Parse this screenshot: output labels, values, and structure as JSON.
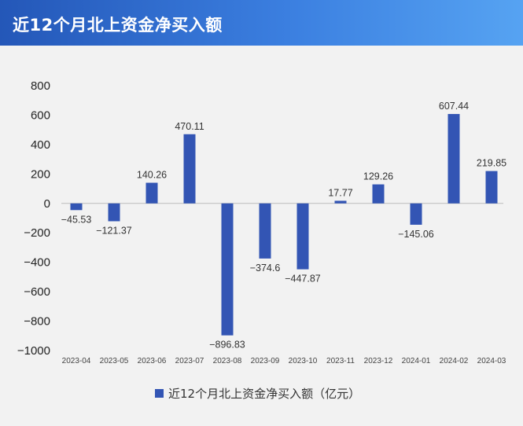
{
  "header": {
    "title": "近12个月北上资金净买入额"
  },
  "chart_data": {
    "type": "bar",
    "categories": [
      "2023-04",
      "2023-05",
      "2023-06",
      "2023-07",
      "2023-08",
      "2023-09",
      "2023-10",
      "2023-11",
      "2023-12",
      "2024-01",
      "2024-02",
      "2024-03"
    ],
    "series": [
      {
        "name": "近12个月北上资金净买入额（亿元）",
        "values": [
          -45.53,
          -121.37,
          140.26,
          470.11,
          -896.83,
          -374.6,
          -447.87,
          17.77,
          129.26,
          -145.06,
          607.44,
          219.85
        ],
        "labels": [
          "−45.53",
          "−121.37",
          "140.26",
          "470.11",
          "−896.83",
          "−374.6",
          "−447.87",
          "17.77",
          "129.26",
          "−145.06",
          "607.44",
          "219.85"
        ],
        "color": "#3355b4"
      }
    ],
    "yticks": [
      "800",
      "600",
      "400",
      "200",
      "0",
      "−200",
      "−400",
      "−600",
      "−800",
      "−1000"
    ],
    "ytick_values": [
      800,
      600,
      400,
      200,
      0,
      -200,
      -400,
      -600,
      -800,
      -1000
    ],
    "ylim": [
      -1000,
      800
    ],
    "grid": false,
    "legend": "bottom-center"
  },
  "legend": {
    "label": "近12个月北上资金净买入额（亿元）"
  }
}
